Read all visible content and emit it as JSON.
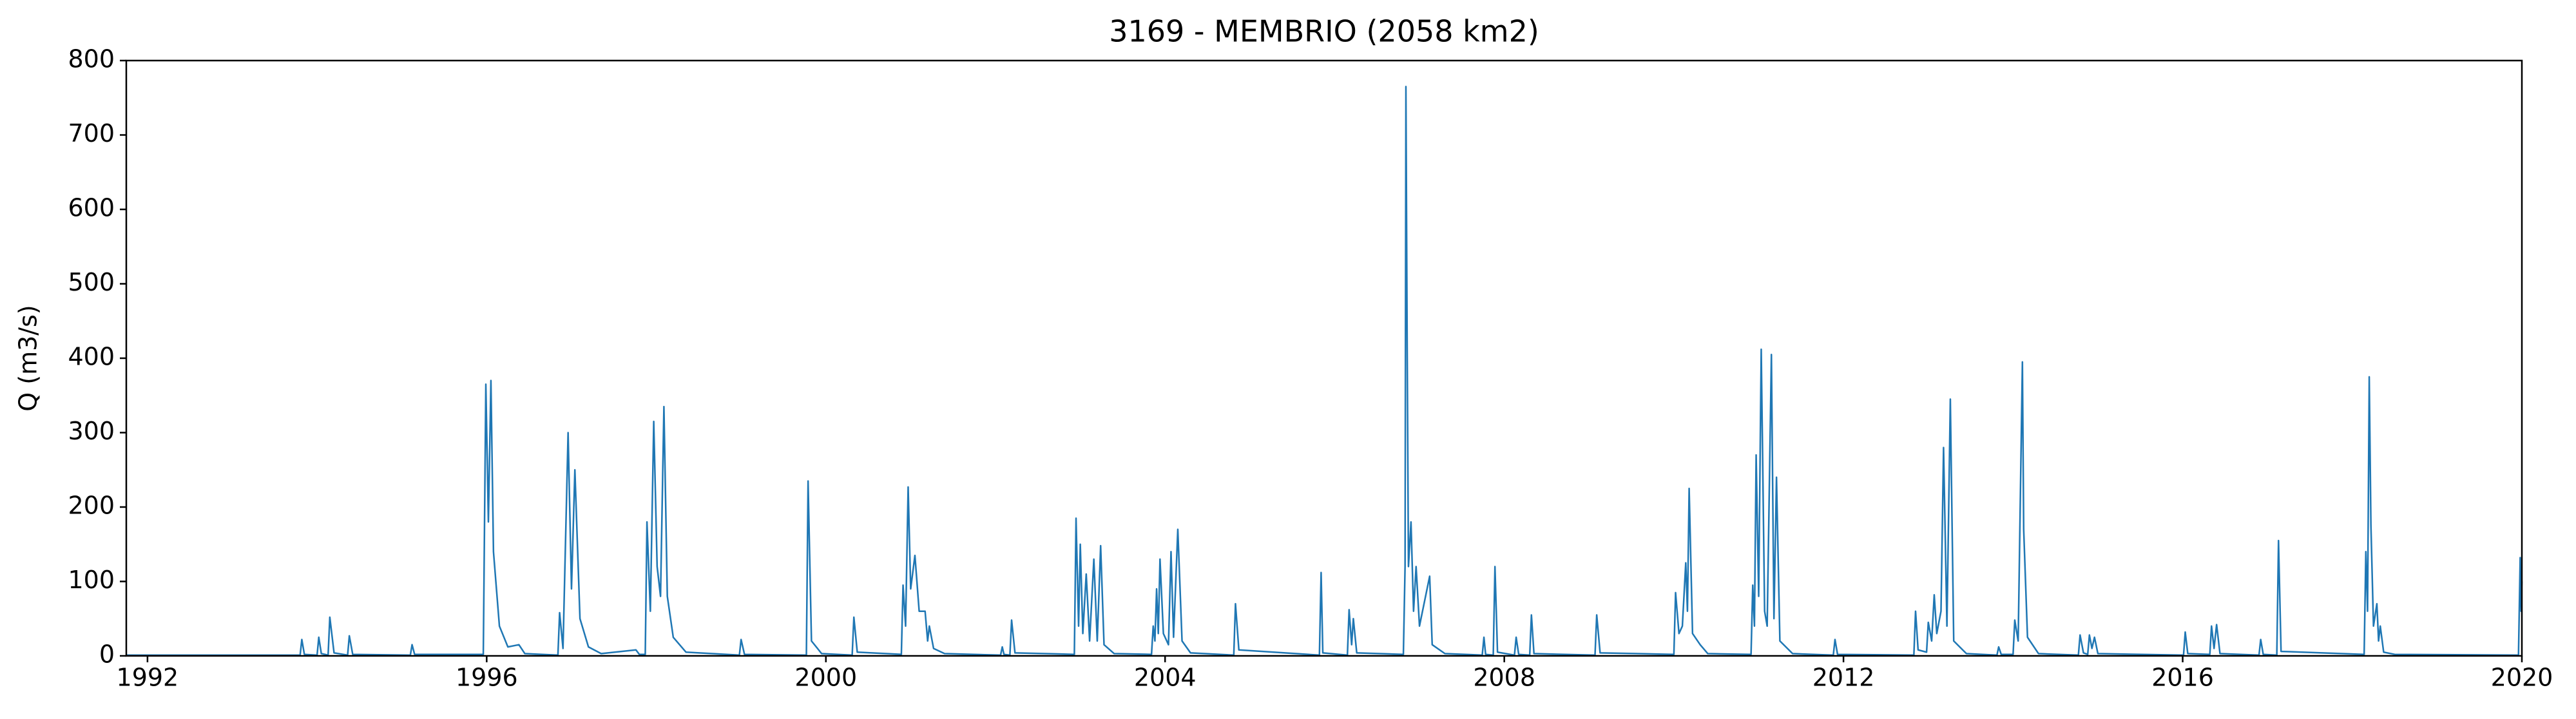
{
  "chart_data": {
    "type": "line",
    "title": "3169 - MEMBRIO (2058 km2)",
    "y_label": "Q (m3/s)",
    "color": "#1f77b4",
    "grid": false,
    "xlim": [
      1991.75,
      2020
    ],
    "xticks": [
      1992,
      1996,
      2000,
      2004,
      2008,
      2012,
      2016,
      2020
    ],
    "ylim": [
      0,
      800
    ],
    "yticks": [
      0,
      100,
      200,
      300,
      400,
      500,
      600,
      700,
      800
    ],
    "x": [
      1991.75,
      1993.8,
      1993.82,
      1993.85,
      1994.0,
      1994.02,
      1994.05,
      1994.13,
      1994.15,
      1994.2,
      1994.36,
      1994.38,
      1994.42,
      1995.1,
      1995.12,
      1995.15,
      1995.96,
      1995.99,
      1996.02,
      1996.05,
      1996.08,
      1996.15,
      1996.25,
      1996.38,
      1996.45,
      1996.84,
      1996.86,
      1996.9,
      1996.96,
      1997.0,
      1997.04,
      1997.1,
      1997.2,
      1997.35,
      1997.76,
      1997.8,
      1997.87,
      1997.89,
      1997.93,
      1997.97,
      1998.01,
      1998.05,
      1998.09,
      1998.13,
      1998.2,
      1998.35,
      1998.98,
      1999.0,
      1999.04,
      1999.77,
      1999.79,
      1999.83,
      1999.95,
      2000.31,
      2000.33,
      2000.37,
      2000.89,
      2000.91,
      2000.94,
      2000.97,
      2001.0,
      2001.05,
      2001.1,
      2001.17,
      2001.2,
      2001.22,
      2001.27,
      2001.4,
      2002.06,
      2002.08,
      2002.1,
      2002.17,
      2002.19,
      2002.23,
      2002.93,
      2002.95,
      2002.98,
      2003.0,
      2003.03,
      2003.07,
      2003.11,
      2003.16,
      2003.2,
      2003.24,
      2003.28,
      2003.4,
      2003.84,
      2003.86,
      2003.88,
      2003.9,
      2003.92,
      2003.94,
      2003.98,
      2004.04,
      2004.07,
      2004.1,
      2004.15,
      2004.2,
      2004.3,
      2004.81,
      2004.83,
      2004.87,
      2005.82,
      2005.84,
      2005.86,
      2006.15,
      2006.17,
      2006.2,
      2006.22,
      2006.26,
      2006.81,
      2006.83,
      2006.84,
      2006.855,
      2006.87,
      2006.9,
      2006.93,
      2006.96,
      2007.0,
      2007.12,
      2007.15,
      2007.3,
      2007.74,
      2007.76,
      2007.78,
      2007.87,
      2007.89,
      2007.92,
      2008.12,
      2008.14,
      2008.17,
      2008.3,
      2008.32,
      2008.35,
      2009.07,
      2009.09,
      2009.13,
      2010.0,
      2010.02,
      2010.06,
      2010.1,
      2010.14,
      2010.16,
      2010.18,
      2010.22,
      2010.31,
      2010.4,
      2010.91,
      2010.93,
      2010.95,
      2010.97,
      2011.0,
      2011.03,
      2011.07,
      2011.1,
      2011.15,
      2011.18,
      2011.21,
      2011.25,
      2011.4,
      2011.88,
      2011.9,
      2011.93,
      2012.83,
      2012.85,
      2012.88,
      2012.98,
      2013.0,
      2013.04,
      2013.07,
      2013.1,
      2013.15,
      2013.18,
      2013.22,
      2013.26,
      2013.3,
      2013.45,
      2013.81,
      2013.83,
      2013.86,
      2014.0,
      2014.02,
      2014.06,
      2014.11,
      2014.125,
      2014.17,
      2014.3,
      2014.77,
      2014.79,
      2014.83,
      2014.88,
      2014.9,
      2014.93,
      2014.96,
      2015.0,
      2016.01,
      2016.03,
      2016.06,
      2016.32,
      2016.34,
      2016.37,
      2016.4,
      2016.44,
      2016.9,
      2016.92,
      2016.95,
      2017.11,
      2017.13,
      2017.16,
      2018.14,
      2018.16,
      2018.18,
      2018.2,
      2018.22,
      2018.25,
      2018.29,
      2018.31,
      2018.33,
      2018.37,
      2018.5,
      2019.96,
      2019.98,
      2019.99,
      2020.0
    ],
    "values": [
      1,
      1,
      22,
      2,
      1,
      25,
      3,
      1,
      52,
      4,
      1,
      27,
      2,
      1,
      15,
      2,
      2,
      365,
      180,
      370,
      140,
      40,
      12,
      15,
      3,
      1,
      58,
      10,
      300,
      90,
      250,
      50,
      12,
      3,
      8,
      2,
      2,
      180,
      60,
      315,
      120,
      80,
      335,
      80,
      25,
      5,
      1,
      22,
      2,
      1,
      235,
      20,
      3,
      1,
      52,
      5,
      2,
      95,
      40,
      227,
      90,
      135,
      60,
      60,
      20,
      40,
      10,
      3,
      1,
      12,
      2,
      1,
      48,
      4,
      2,
      185,
      40,
      150,
      30,
      110,
      20,
      130,
      20,
      148,
      15,
      3,
      2,
      40,
      20,
      90,
      30,
      130,
      30,
      15,
      140,
      25,
      170,
      20,
      4,
      1,
      70,
      8,
      1,
      112,
      4,
      1,
      62,
      15,
      50,
      4,
      2,
      120,
      765,
      415,
      120,
      180,
      60,
      120,
      40,
      107,
      15,
      3,
      1,
      25,
      2,
      1,
      120,
      5,
      1,
      25,
      2,
      1,
      55,
      3,
      1,
      55,
      4,
      2,
      85,
      30,
      40,
      125,
      60,
      225,
      30,
      15,
      3,
      2,
      95,
      40,
      270,
      80,
      412,
      60,
      40,
      405,
      50,
      240,
      20,
      3,
      1,
      22,
      2,
      1,
      60,
      8,
      5,
      45,
      20,
      82,
      30,
      60,
      280,
      40,
      345,
      20,
      3,
      1,
      12,
      2,
      2,
      48,
      20,
      395,
      170,
      25,
      3,
      1,
      28,
      4,
      2,
      28,
      10,
      25,
      3,
      1,
      32,
      3,
      2,
      40,
      10,
      42,
      3,
      1,
      22,
      2,
      1,
      155,
      6,
      2,
      140,
      60,
      375,
      175,
      40,
      70,
      20,
      40,
      5,
      2,
      1,
      132,
      60,
      100
    ]
  }
}
